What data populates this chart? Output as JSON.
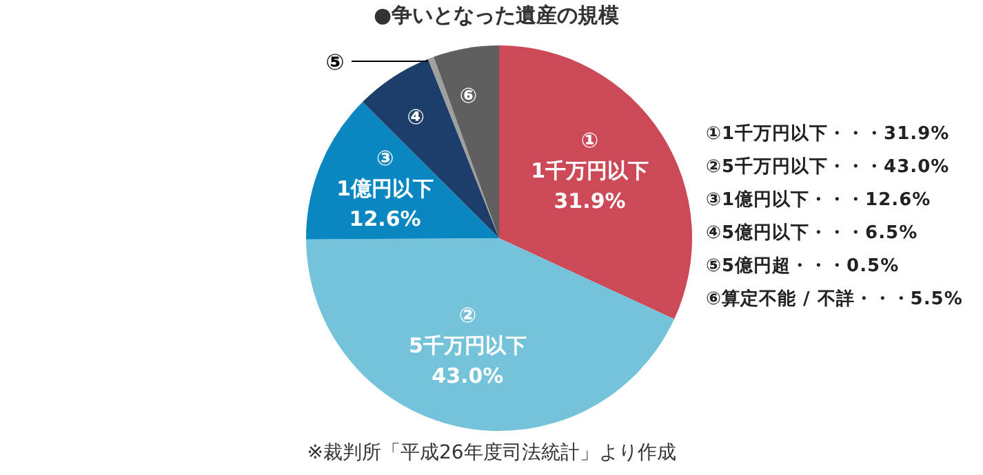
{
  "chart_data": {
    "type": "pie",
    "title": "●争いとなった遺産の規模",
    "categories": [
      "①",
      "②",
      "③",
      "④",
      "⑤",
      "⑥"
    ],
    "values": [
      31.9,
      43.0,
      12.6,
      6.5,
      0.5,
      5.5
    ],
    "value_labels": [
      "31.9%",
      "43.0%",
      "12.6%",
      null,
      null,
      null
    ],
    "colors": [
      "#cc4957",
      "#74c3da",
      "#0a87c1",
      "#1c3e68",
      "#a0a0a0",
      "#5f5f5f"
    ],
    "annotations": [
      {
        "text": "1千万円以下",
        "x": "①"
      },
      {
        "text": "5千万円以下",
        "x": "②"
      },
      {
        "text": "1億円以下",
        "x": "③"
      },
      "①1千万円以下・・・31.9%",
      "②5千万円以下・・・43.0%",
      "③1億円以下・・・12.6%",
      "④5億円以下・・・6.5%",
      "⑤5億円超・・・0.5%",
      "⑥算定不能 / 不詳・・・5.5%",
      "※裁判所「平成26年度司法統計」より作成"
    ]
  }
}
